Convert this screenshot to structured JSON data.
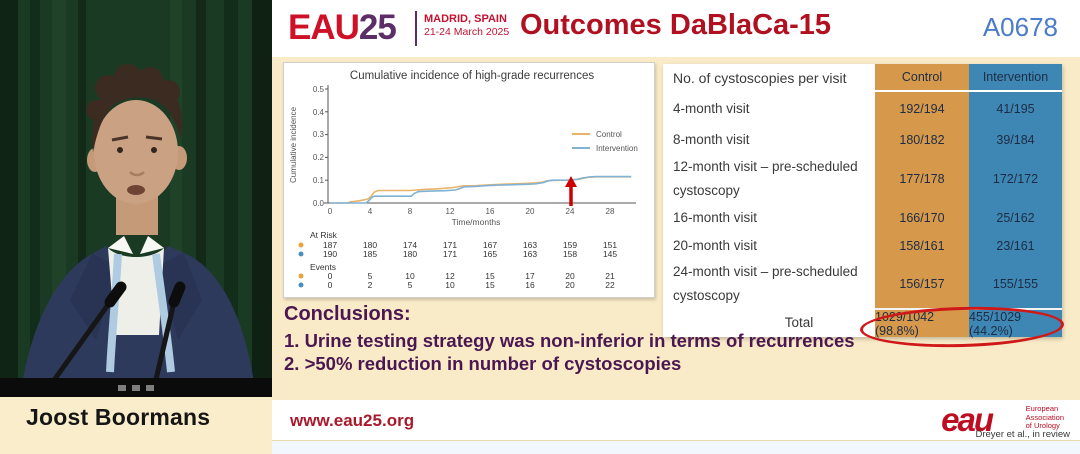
{
  "header": {
    "logo_eau": "EAU",
    "logo_year": "25",
    "location": "MADRID, SPAIN",
    "dates": "21-24 March 2025",
    "title": "Outcomes DaBlaCa-15",
    "code": "A0678"
  },
  "speaker": {
    "name": "Joost Boormans"
  },
  "chart_data": {
    "type": "line",
    "title": "Cumulative incidence of high-grade recurrences",
    "xlabel": "Time/months",
    "ylabel": "Cumulative incidence",
    "xlim": [
      0,
      30
    ],
    "ylim": [
      0,
      0.5
    ],
    "xticks": [
      0,
      4,
      8,
      12,
      16,
      20,
      24,
      28
    ],
    "ytick_labels": [
      "0.0",
      "0.1",
      "0.2",
      "0.3",
      "0.4",
      "0.5"
    ],
    "grid": false,
    "legend_position": "right-middle",
    "series": [
      {
        "name": "Control",
        "color": "#E9B36A",
        "steps": [
          [
            0,
            0
          ],
          [
            1.8,
            0
          ],
          [
            2,
            0.005
          ],
          [
            2.6,
            0.008
          ],
          [
            3.2,
            0.012
          ],
          [
            3.8,
            0.018
          ],
          [
            4.1,
            0.03
          ],
          [
            4.4,
            0.048
          ],
          [
            4.8,
            0.055
          ],
          [
            8,
            0.055
          ],
          [
            8.6,
            0.057
          ],
          [
            9.5,
            0.06
          ],
          [
            10.5,
            0.062
          ],
          [
            11.5,
            0.065
          ],
          [
            12.3,
            0.068
          ],
          [
            12.8,
            0.072
          ],
          [
            13.2,
            0.075
          ],
          [
            14.5,
            0.076
          ],
          [
            15.5,
            0.079
          ],
          [
            16.5,
            0.081
          ],
          [
            17.5,
            0.083
          ],
          [
            18.5,
            0.084
          ],
          [
            19.5,
            0.086
          ],
          [
            20.5,
            0.088
          ],
          [
            21.2,
            0.092
          ],
          [
            21.6,
            0.097
          ],
          [
            22,
            0.099
          ],
          [
            23.5,
            0.1
          ],
          [
            24,
            0.101
          ],
          [
            24.8,
            0.104
          ],
          [
            25.3,
            0.109
          ],
          [
            25.8,
            0.113
          ],
          [
            26.5,
            0.115
          ],
          [
            30,
            0.115
          ]
        ]
      },
      {
        "name": "Intervention",
        "color": "#7FB2D4",
        "steps": [
          [
            0,
            0
          ],
          [
            3.6,
            0
          ],
          [
            3.9,
            0.012
          ],
          [
            4.1,
            0.022
          ],
          [
            4.4,
            0.03
          ],
          [
            8.1,
            0.03
          ],
          [
            8.4,
            0.042
          ],
          [
            8.8,
            0.05
          ],
          [
            10,
            0.052
          ],
          [
            11.5,
            0.054
          ],
          [
            12.5,
            0.057
          ],
          [
            13,
            0.065
          ],
          [
            13.4,
            0.071
          ],
          [
            14.5,
            0.073
          ],
          [
            15.5,
            0.076
          ],
          [
            16.5,
            0.078
          ],
          [
            18,
            0.08
          ],
          [
            19.5,
            0.082
          ],
          [
            20.5,
            0.084
          ],
          [
            21.3,
            0.09
          ],
          [
            21.7,
            0.097
          ],
          [
            22.2,
            0.1
          ],
          [
            24,
            0.101
          ],
          [
            24.6,
            0.104
          ],
          [
            25.2,
            0.11
          ],
          [
            25.8,
            0.114
          ],
          [
            26.5,
            0.116
          ],
          [
            30,
            0.116
          ]
        ]
      }
    ],
    "annotation": {
      "type": "arrow",
      "x": 24,
      "color": "#CC0000"
    },
    "at_risk": {
      "label": "At Risk",
      "times": [
        0,
        4,
        8,
        12,
        16,
        20,
        24,
        28
      ],
      "control": [
        187,
        180,
        174,
        171,
        167,
        163,
        159,
        151
      ],
      "intervention": [
        190,
        185,
        180,
        171,
        165,
        163,
        158,
        145
      ]
    },
    "events": {
      "label": "Events",
      "control": [
        0,
        5,
        10,
        12,
        15,
        17,
        20,
        21
      ],
      "intervention": [
        0,
        2,
        5,
        10,
        15,
        16,
        20,
        22
      ]
    }
  },
  "table": {
    "columns": [
      "No. of cystoscopies per visit",
      "Control",
      "Intervention"
    ],
    "colors": {
      "control": "#D6994C",
      "intervention": "#3E87B4"
    },
    "rows": [
      {
        "label": "4-month visit",
        "control": "192/194",
        "intervention": "41/195"
      },
      {
        "label": "8-month visit",
        "control": "180/182",
        "intervention": "39/184"
      },
      {
        "label": "12-month visit – pre-scheduled cystoscopy",
        "control": "177/178",
        "intervention": "172/172"
      },
      {
        "label": "16-month visit",
        "control": "166/170",
        "intervention": "25/162"
      },
      {
        "label": "20-month visit",
        "control": "158/161",
        "intervention": "23/161"
      },
      {
        "label": "24-month visit – pre-scheduled cystoscopy",
        "control": "156/157",
        "intervention": "155/155"
      }
    ],
    "total": {
      "label": "Total",
      "control": "1029/1042 (98.8%)",
      "intervention": "455/1029 (44.2%)"
    }
  },
  "conclusions": {
    "heading": "Conclusions:",
    "items": [
      "1. Urine testing strategy was non-inferior in terms of recurrences",
      "2. >50% reduction in number of cystoscopies"
    ]
  },
  "footer": {
    "url": "www.eau25.org",
    "logo_word": "eau",
    "logo_caption_lines": [
      "European",
      "Association",
      "of Urology"
    ],
    "credit": "Dreyer et al., in review"
  }
}
